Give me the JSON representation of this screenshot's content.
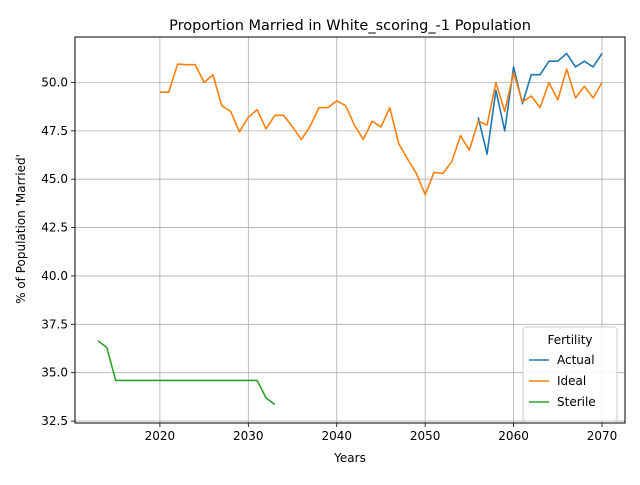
{
  "chart_data": {
    "type": "line",
    "title": "Proportion Married in White_scoring_-1 Population",
    "xlabel": "Years",
    "ylabel": "% of Population 'Married'",
    "xlim": [
      2010.4,
      2072.6
    ],
    "ylim": [
      32.4,
      52.35
    ],
    "xticks": [
      2020,
      2030,
      2040,
      2050,
      2060,
      2070
    ],
    "yticks": [
      32.5,
      35.0,
      37.5,
      40.0,
      42.5,
      45.0,
      47.5,
      50.0
    ],
    "ytick_labels": [
      "32.5",
      "35.0",
      "37.5",
      "40.0",
      "42.5",
      "45.0",
      "47.5",
      "50.0"
    ],
    "grid": true,
    "legend": {
      "title": "Fertility",
      "position": "lower-right"
    },
    "series": [
      {
        "name": "Actual",
        "color": "#1f77b4",
        "x": [
          2056,
          2057,
          2058,
          2059,
          2060,
          2061,
          2062,
          2063,
          2064,
          2065,
          2066,
          2067,
          2068,
          2069,
          2070
        ],
        "values": [
          48.2,
          46.3,
          49.6,
          47.5,
          50.8,
          48.9,
          50.4,
          50.4,
          51.1,
          51.1,
          51.5,
          50.8,
          51.1,
          50.8,
          51.5
        ]
      },
      {
        "name": "Ideal",
        "color": "#ff7f0e",
        "x": [
          2020,
          2021,
          2022,
          2023,
          2024,
          2025,
          2026,
          2027,
          2028,
          2029,
          2030,
          2031,
          2032,
          2033,
          2034,
          2035,
          2036,
          2037,
          2038,
          2039,
          2040,
          2041,
          2042,
          2043,
          2044,
          2045,
          2046,
          2047,
          2048,
          2049,
          2050,
          2051,
          2052,
          2053,
          2054,
          2055,
          2056,
          2057,
          2058,
          2059,
          2060,
          2061,
          2062,
          2063,
          2064,
          2065,
          2066,
          2067,
          2068,
          2069,
          2070
        ],
        "values": [
          49.5,
          49.5,
          50.95,
          50.92,
          50.92,
          50.0,
          50.4,
          48.8,
          48.5,
          47.45,
          48.2,
          48.6,
          47.6,
          48.3,
          48.3,
          47.7,
          47.05,
          47.75,
          48.7,
          48.7,
          49.05,
          48.8,
          47.8,
          47.05,
          48.0,
          47.7,
          48.7,
          46.85,
          46.05,
          45.3,
          44.2,
          45.35,
          45.3,
          45.9,
          47.25,
          46.5,
          48.0,
          47.8,
          50.0,
          48.5,
          50.5,
          49.0,
          49.3,
          48.7,
          50.0,
          49.1,
          50.7,
          49.2,
          49.8,
          49.2,
          50.0
        ]
      },
      {
        "name": "Sterile",
        "color": "#2ca02c",
        "x": [
          2013,
          2014,
          2015,
          2016,
          2017,
          2018,
          2019,
          2020,
          2021,
          2022,
          2023,
          2024,
          2025,
          2026,
          2027,
          2028,
          2029,
          2030,
          2031,
          2032,
          2033
        ],
        "values": [
          36.65,
          36.3,
          34.6,
          34.6,
          34.6,
          34.6,
          34.6,
          34.6,
          34.6,
          34.6,
          34.6,
          34.6,
          34.6,
          34.6,
          34.6,
          34.6,
          34.6,
          34.6,
          34.6,
          33.7,
          33.35
        ]
      }
    ]
  }
}
